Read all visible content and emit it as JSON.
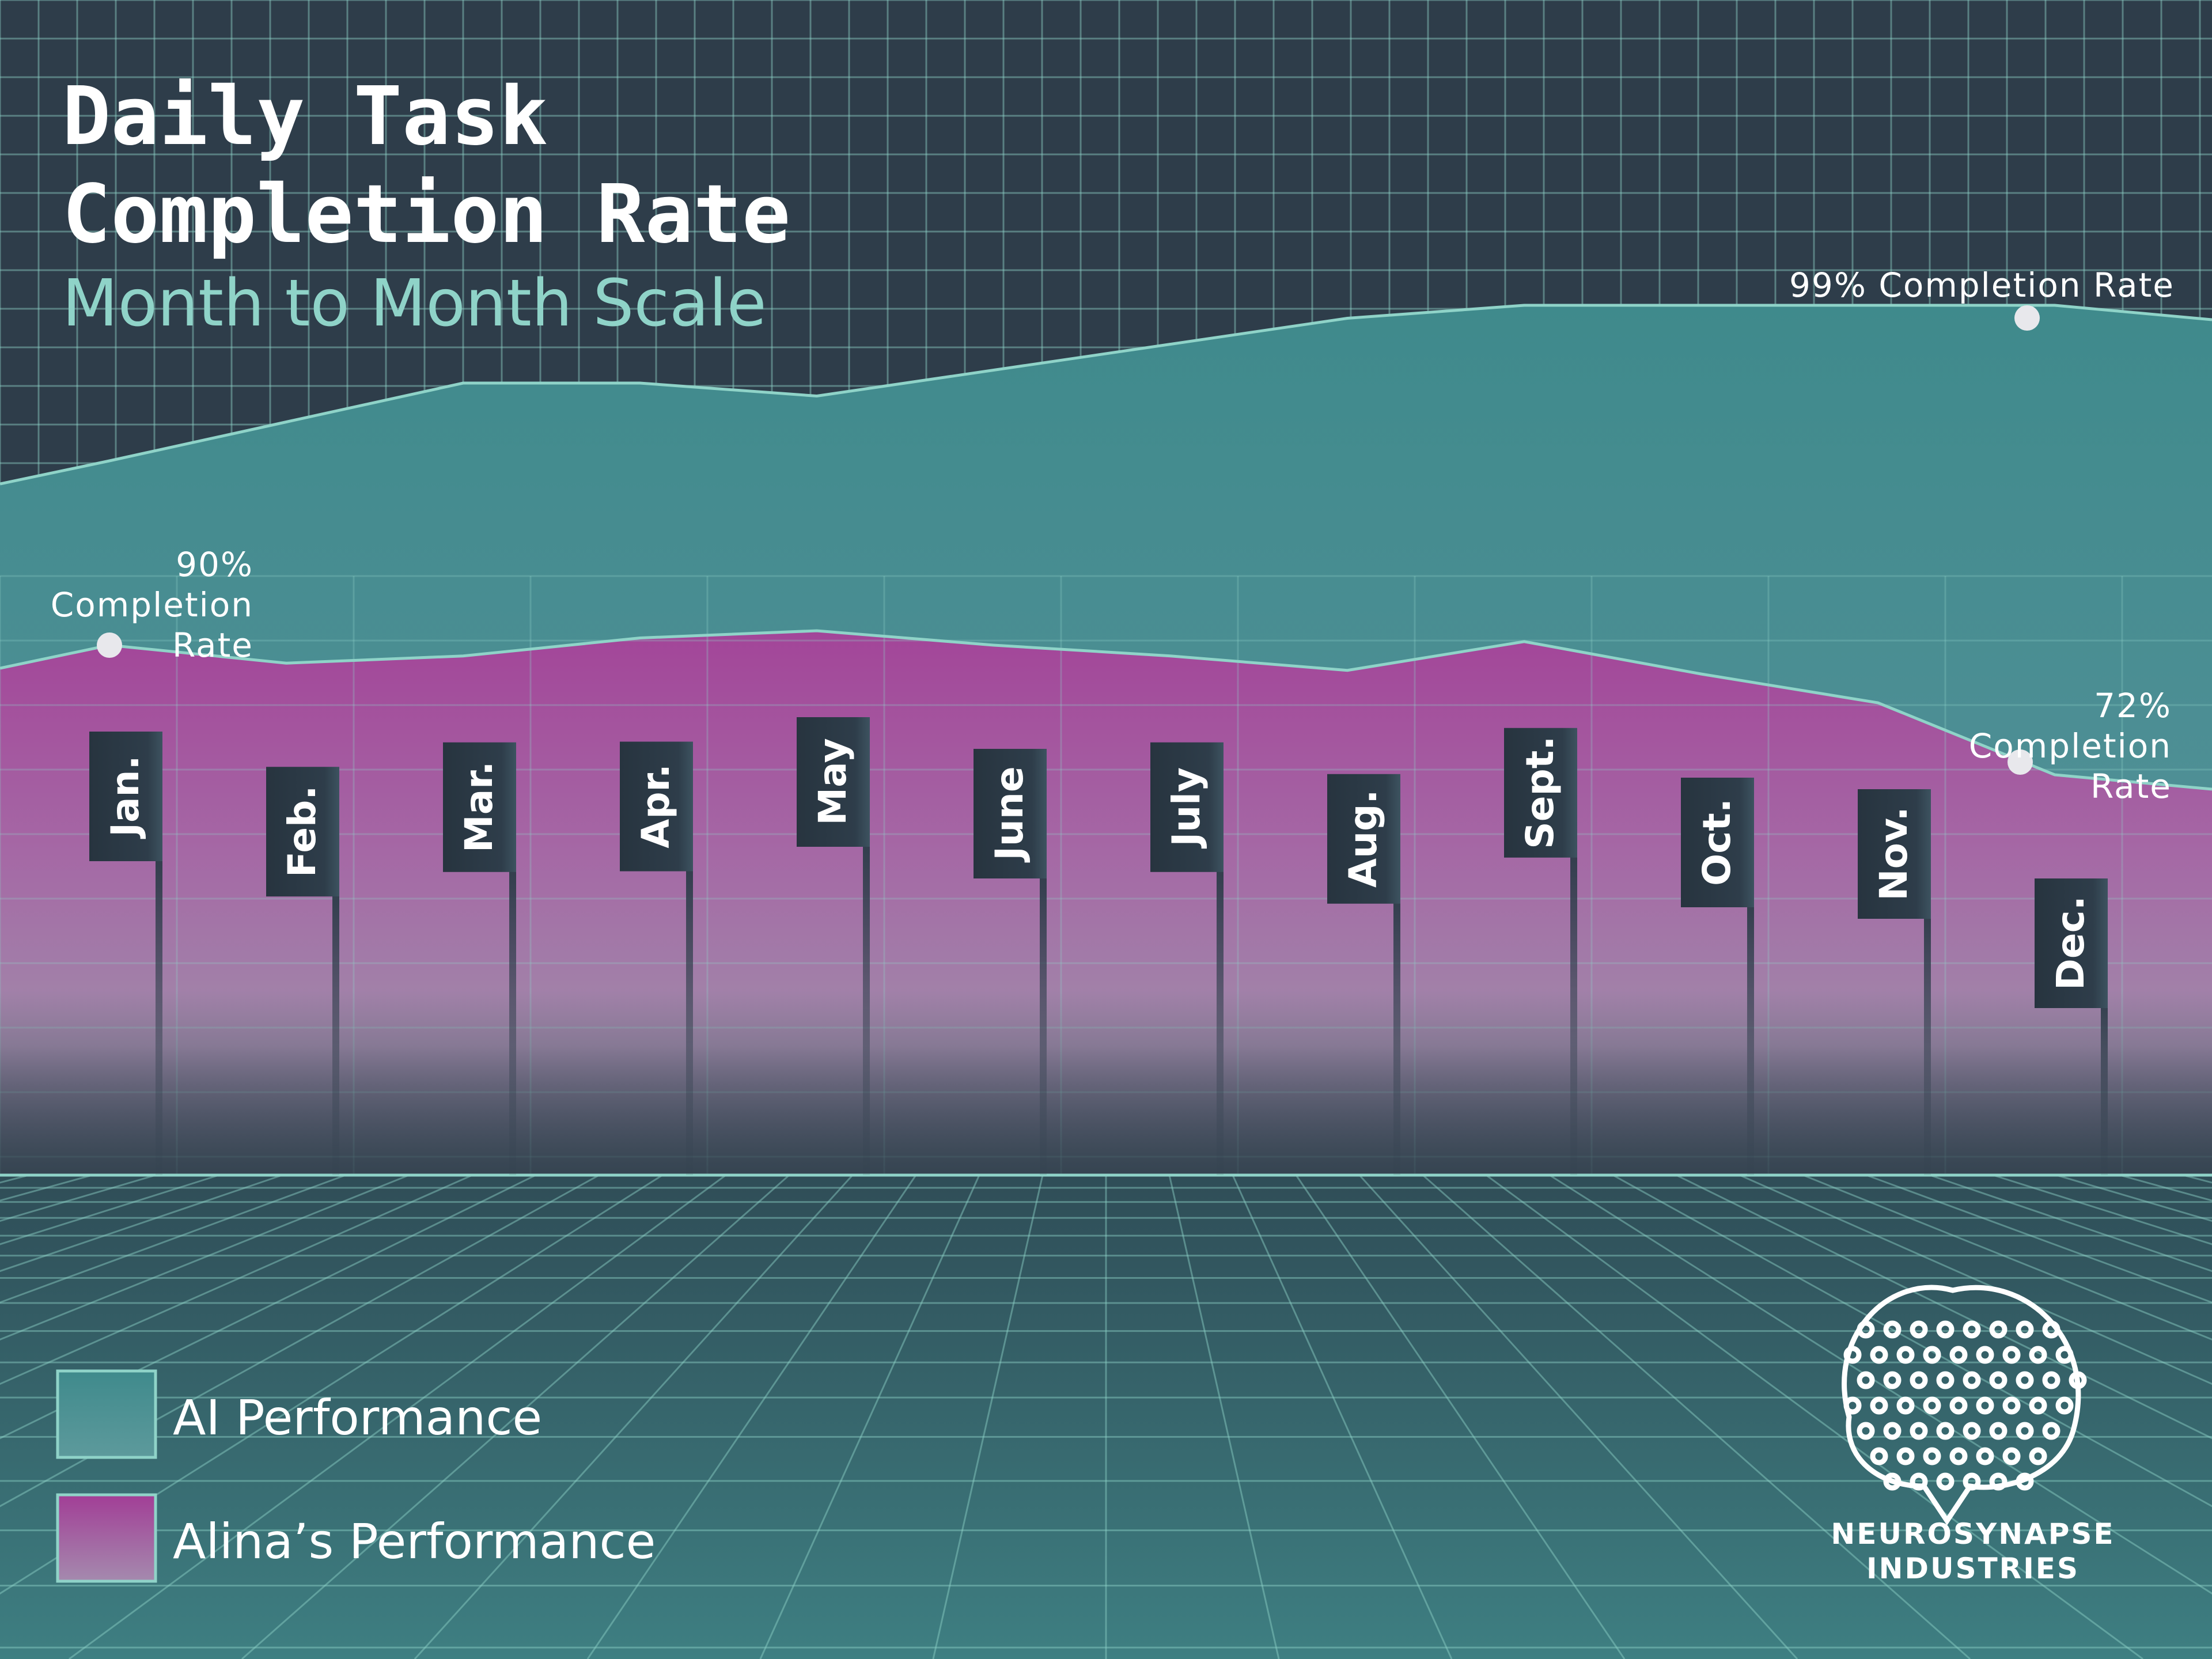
{
  "title_line1": "Daily Task",
  "title_line2": "Completion Rate",
  "subtitle": "Month to Month Scale",
  "annotations": {
    "ai_peak": "99% Completion Rate",
    "alina_start": [
      "90%",
      "Completion",
      "Rate"
    ],
    "alina_end": [
      "72%",
      "Completion",
      "Rate"
    ]
  },
  "legend": {
    "ai": "AI Performance",
    "alina": "Alina’s Performance"
  },
  "logo": {
    "line1": "NEUROSYNAPSE",
    "line2": "INDUSTRIES"
  },
  "colors": {
    "background": "#2e3d4a",
    "grid": "#8fd3c8",
    "ai_fill": "#3f8a8c",
    "alina_fill": "#a23e96",
    "flag": "#2e3d4a",
    "floor": "#3a7779"
  },
  "chart_data": {
    "type": "area",
    "categories": [
      "Jan.",
      "Feb.",
      "Mar.",
      "Apr.",
      "May",
      "June",
      "July",
      "Aug.",
      "Sept.",
      "Oct.",
      "Nov.",
      "Dec."
    ],
    "series": [
      {
        "name": "AI Performance",
        "values": [
          93,
          94.5,
          96,
          96,
          95.5,
          96.5,
          97.5,
          98.5,
          99,
          99,
          99,
          99
        ]
      },
      {
        "name": "Alina’s Performance",
        "values": [
          90,
          87.5,
          88.5,
          91,
          92,
          90,
          88.5,
          86.5,
          90.5,
          86,
          82,
          72
        ]
      }
    ]
  }
}
